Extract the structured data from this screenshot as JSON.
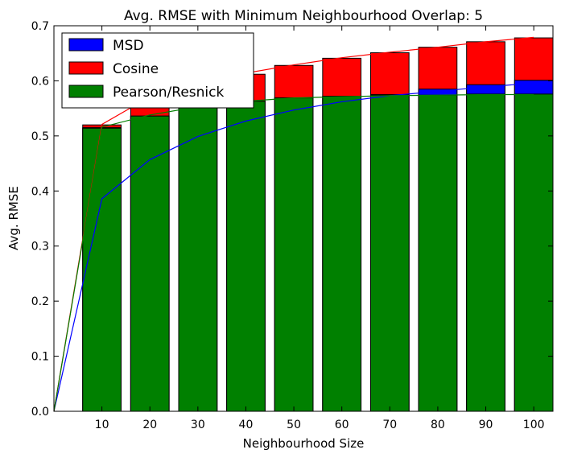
{
  "chart_data": {
    "type": "bar",
    "title": "Avg. RMSE with Minimum Neighbourhood Overlap: 5",
    "xlabel": "Neighbourhood Size",
    "ylabel": "Avg. RMSE",
    "xlim": [
      0,
      104
    ],
    "ylim": [
      0,
      0.7
    ],
    "x_ticks": [
      10,
      20,
      30,
      40,
      50,
      60,
      70,
      80,
      90,
      100
    ],
    "y_ticks": [
      0.0,
      0.1,
      0.2,
      0.3,
      0.4,
      0.5,
      0.6,
      0.7
    ],
    "categories": [
      10,
      20,
      30,
      40,
      50,
      60,
      70,
      80,
      90,
      100
    ],
    "grid": false,
    "legend_position": "top-left",
    "series": [
      {
        "name": "MSD",
        "color": "#0000ff",
        "bar_values": [
          0.515,
          0.536,
          0.553,
          0.563,
          0.569,
          0.572,
          0.575,
          0.585,
          0.593,
          0.601
        ],
        "line_x": [
          0,
          10,
          20,
          30,
          40,
          50,
          60,
          70,
          80,
          90,
          100
        ],
        "line_values": [
          0.0,
          0.386,
          0.457,
          0.499,
          0.527,
          0.547,
          0.562,
          0.573,
          0.581,
          0.589,
          0.596
        ]
      },
      {
        "name": "Cosine",
        "color": "#ff0000",
        "bar_values": [
          0.52,
          0.569,
          0.595,
          0.612,
          0.628,
          0.641,
          0.651,
          0.661,
          0.671,
          0.678
        ],
        "line_x": [
          0,
          10,
          20,
          30,
          40,
          50,
          60,
          70,
          80,
          90,
          100
        ],
        "line_values": [
          0.0,
          0.521,
          0.571,
          0.597,
          0.614,
          0.629,
          0.642,
          0.652,
          0.661,
          0.671,
          0.679
        ]
      },
      {
        "name": "Pearson/Resnick",
        "color": "#008000",
        "bar_values": [
          0.514,
          0.536,
          0.553,
          0.563,
          0.569,
          0.572,
          0.574,
          0.574,
          0.576,
          0.576
        ],
        "line_x": [
          0,
          10,
          20,
          30,
          40,
          50,
          60,
          70,
          80,
          90,
          100
        ],
        "line_values": [
          0.0,
          0.516,
          0.538,
          0.553,
          0.563,
          0.569,
          0.571,
          0.573,
          0.574,
          0.575,
          0.575
        ]
      }
    ]
  }
}
